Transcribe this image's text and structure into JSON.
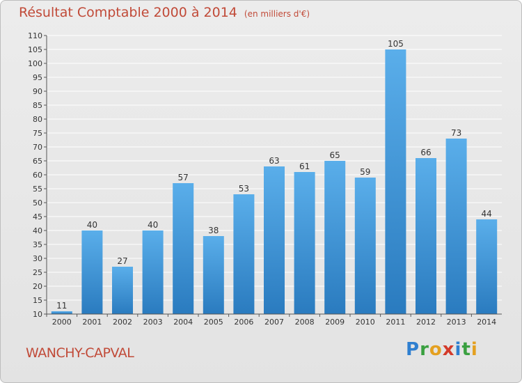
{
  "title": "Résultat Comptable 2000 à 2014",
  "subtitle": "(en milliers d'€)",
  "commune": "WANCHY-CAPVAL",
  "brand": {
    "letters": [
      "P",
      "r",
      "o",
      "x",
      "i",
      "t",
      "i"
    ],
    "colors": [
      "#2f7fd0",
      "#3aa040",
      "#e4a020",
      "#d33a2a",
      "#2f7fd0",
      "#3aa040",
      "#e4a020"
    ]
  },
  "colors": {
    "title": "#c14a38",
    "bar_light": "#5aaeea",
    "bar_dark": "#2a7bbf",
    "grid": "#ffffff",
    "text": "#333333"
  },
  "chart_data": {
    "type": "bar",
    "title": "Résultat Comptable 2000 à 2014",
    "categories": [
      "2000",
      "2001",
      "2002",
      "2003",
      "2004",
      "2005",
      "2006",
      "2007",
      "2008",
      "2009",
      "2010",
      "2011",
      "2012",
      "2013",
      "2014"
    ],
    "values": [
      11,
      40,
      27,
      40,
      57,
      38,
      53,
      63,
      61,
      65,
      59,
      105,
      66,
      73,
      44
    ],
    "ylim": [
      10,
      110
    ],
    "yticks": [
      10,
      15,
      20,
      25,
      30,
      35,
      40,
      45,
      50,
      55,
      60,
      65,
      70,
      75,
      80,
      85,
      90,
      95,
      100,
      105,
      110
    ],
    "grid": true,
    "data_labels": true
  }
}
